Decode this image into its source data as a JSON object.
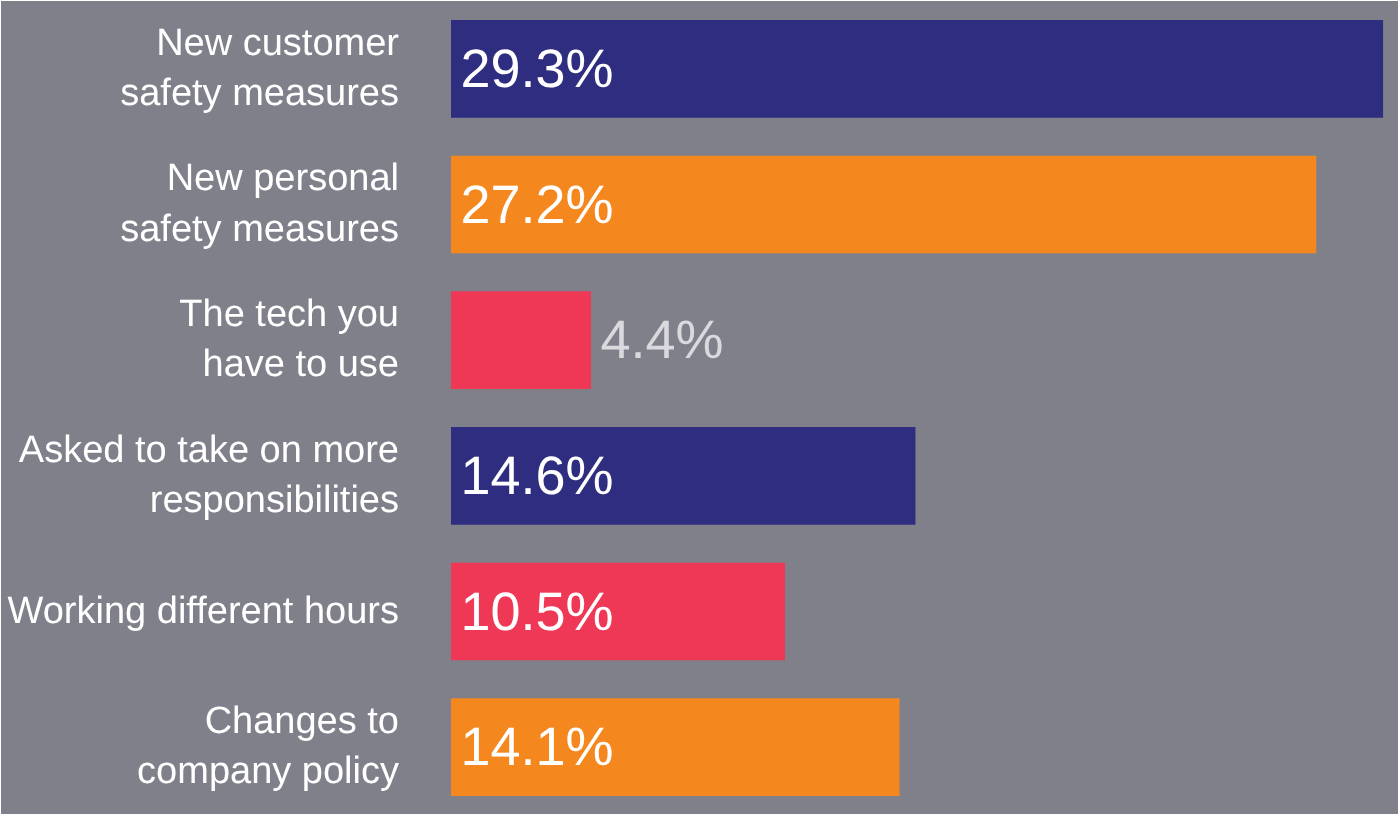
{
  "chart_data": {
    "type": "bar",
    "orientation": "horizontal",
    "categories": [
      "New customer\nsafety measures",
      "New personal\nsafety measures",
      "The tech you\nhave to use",
      "Asked to take on more\nresponsibilities",
      "Working different hours",
      "Changes to\ncompany policy"
    ],
    "values": [
      29.3,
      27.2,
      4.4,
      14.6,
      10.5,
      14.1
    ],
    "colors": [
      "#2e2d80",
      "#f5871f",
      "#ee3856",
      "#2e2d80",
      "#ee3856",
      "#f5871f"
    ],
    "value_labels": [
      "29.3%",
      "27.2%",
      "4.4%",
      "14.6%",
      "10.5%",
      "14.1%"
    ],
    "xlim": [
      0,
      29.8
    ]
  }
}
